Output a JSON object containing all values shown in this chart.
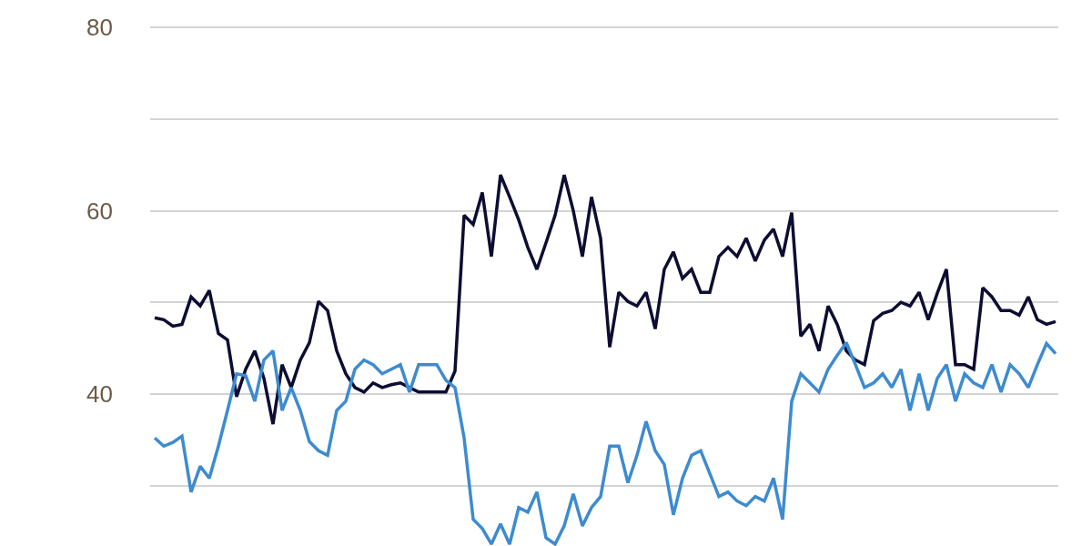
{
  "chart_data": {
    "type": "line",
    "categories": [
      null,
      null,
      null,
      null,
      null,
      null,
      null,
      null,
      null,
      null,
      null,
      null,
      null,
      null,
      null,
      null,
      null,
      null,
      null,
      null,
      null,
      null,
      null,
      null,
      null,
      null,
      null,
      null,
      null,
      null,
      null,
      null,
      null,
      null,
      null,
      null,
      null,
      null,
      null,
      null,
      null,
      null,
      null,
      null,
      null,
      null,
      null,
      null,
      null,
      null,
      null,
      null,
      null,
      null,
      null,
      null,
      null,
      null,
      null,
      null,
      null,
      null,
      null,
      null,
      null,
      null,
      null,
      null,
      null,
      null,
      null,
      null,
      null,
      null,
      null,
      null,
      null,
      null,
      null,
      null,
      null,
      null,
      null,
      null,
      null,
      null,
      null,
      null,
      null,
      null,
      null,
      null,
      null,
      null,
      null,
      null,
      null,
      null,
      null,
      null
    ],
    "series": [
      {
        "color": "#0d0d33",
        "values": [
          48.3,
          48.1,
          47.4,
          47.6,
          50.6,
          49.6,
          51.3,
          46.6,
          45.9,
          39.7,
          42.7,
          44.7,
          41.7,
          36.7,
          43.2,
          40.7,
          43.7,
          45.6,
          50.1,
          49.1,
          44.7,
          42.2,
          40.7,
          40.2,
          41.2,
          40.7,
          41,
          41.2,
          40.7,
          40.2,
          40.2,
          40.2,
          40.2,
          42.5,
          59.5,
          58.5,
          62,
          55,
          63.9,
          61.5,
          59,
          56,
          53.6,
          56.5,
          59.5,
          63.9,
          60,
          55,
          61.5,
          57,
          45.1,
          51.1,
          50.1,
          49.6,
          51.1,
          47.1,
          53.6,
          55.5,
          52.6,
          53.6,
          51.1,
          51.1,
          55,
          56,
          55,
          57,
          54.5,
          56.8,
          58,
          55,
          59.8,
          46.3,
          47.6,
          44.7,
          49.6,
          47.6,
          44.7,
          43.7,
          43.2,
          48,
          48.8,
          49.1,
          50,
          49.6,
          51.1,
          48.1,
          51,
          53.6,
          43.2,
          43.2,
          42.7,
          51.6,
          50.6,
          49.1,
          49.1,
          48.6,
          50.6,
          48.1,
          47.6,
          47.9
        ]
      },
      {
        "color": "#3d8bd0",
        "values": [
          35.2,
          34.3,
          34.7,
          35.4,
          29.3,
          32.1,
          30.8,
          34.3,
          38.2,
          42.2,
          42,
          39.2,
          43.7,
          44.7,
          38.2,
          40.7,
          38.2,
          34.8,
          33.8,
          33.3,
          38.2,
          39.2,
          42.7,
          43.7,
          43.2,
          42.2,
          42.7,
          43.2,
          40.2,
          43.2,
          43.2,
          43.2,
          41.5,
          40.7,
          35.2,
          26.3,
          25.3,
          23.6,
          25.8,
          23.6,
          27.6,
          27.1,
          29.3,
          24.3,
          23.6,
          25.6,
          29.1,
          25.6,
          27.6,
          28.8,
          34.3,
          34.3,
          30.3,
          33.3,
          37,
          33.8,
          32.3,
          26.8,
          30.8,
          33.3,
          33.8,
          31.3,
          28.8,
          29.3,
          28.3,
          27.8,
          28.8,
          28.3,
          30.8,
          26.3,
          39.2,
          42.2,
          41.2,
          40.2,
          42.7,
          44.2,
          45.6,
          43.2,
          40.7,
          41.2,
          42.2,
          40.7,
          42.7,
          38.2,
          42.2,
          38.2,
          41.7,
          43.2,
          39.2,
          42.2,
          41.2,
          40.7,
          43.2,
          40.2,
          43.2,
          42.2,
          40.7,
          43.2,
          45.5,
          44.4
        ]
      }
    ],
    "ylim": [
      23.4,
      83
    ],
    "yticks": [
      80,
      {
        "value": 70,
        "label": null
      },
      60,
      {
        "value": 50,
        "label": null
      },
      40,
      {
        "value": 30,
        "label": null
      }
    ],
    "tick_labels": "y",
    "grid": "y",
    "marker": "none",
    "line_style": "solid"
  }
}
